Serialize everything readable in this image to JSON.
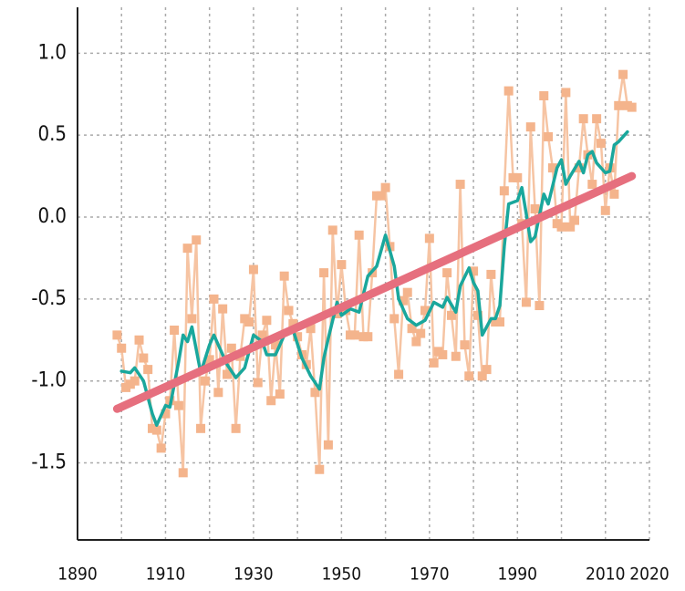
{
  "chart_data": {
    "type": "line",
    "xlim": [
      1890,
      2020
    ],
    "xticks": [
      1890,
      1910,
      1930,
      1950,
      1970,
      1990,
      2010,
      2020
    ],
    "ylim": [
      -1.97,
      1.28
    ],
    "yticks": [
      -1.5,
      {
        "value": -1,
        "label": "-1.0"
      },
      -0.5,
      {
        "value": 0,
        "label": "0.0"
      },
      0.5,
      {
        "value": 1,
        "label": "1.0"
      }
    ],
    "grid": true,
    "series": [
      {
        "color": "#f6c4a3",
        "marker": "square",
        "marker_color": "#f4b48c",
        "width": 2.5,
        "x": [
          1899,
          1900,
          1901,
          1902,
          1903,
          1904,
          1905,
          1906,
          1907,
          1908,
          1909,
          1910,
          1911,
          1912,
          1913,
          1914,
          1915,
          1916,
          1917,
          1918,
          1919,
          1920,
          1921,
          1922,
          1923,
          1924,
          1925,
          1926,
          1927,
          1928,
          1929,
          1930,
          1931,
          1932,
          1933,
          1934,
          1935,
          1936,
          1937,
          1938,
          1939,
          1940,
          1941,
          1942,
          1943,
          1944,
          1945,
          1946,
          1947,
          1948,
          1949,
          1950,
          1951,
          1952,
          1953,
          1954,
          1955,
          1956,
          1957,
          1958,
          1959,
          1960,
          1961,
          1962,
          1963,
          1964,
          1965,
          1966,
          1967,
          1968,
          1969,
          1970,
          1971,
          1972,
          1973,
          1974,
          1975,
          1976,
          1977,
          1978,
          1979,
          1980,
          1981,
          1982,
          1983,
          1984,
          1985,
          1986,
          1987,
          1988,
          1989,
          1990,
          1991,
          1992,
          1993,
          1994,
          1995,
          1996,
          1997,
          1998,
          1999,
          2000,
          2001,
          2002,
          2003,
          2004,
          2005,
          2006,
          2007,
          2008,
          2009,
          2010,
          2011,
          2012,
          2013,
          2014,
          2015,
          2016
        ],
        "values": [
          -0.72,
          -0.8,
          -1.04,
          -1.02,
          -1.0,
          -0.75,
          -0.86,
          -0.93,
          -1.29,
          -1.3,
          -1.41,
          -1.2,
          -1.12,
          -0.69,
          -1.15,
          -1.56,
          -0.19,
          -0.62,
          -0.14,
          -1.29,
          -1.0,
          -0.87,
          -0.5,
          -1.07,
          -0.56,
          -0.96,
          -0.8,
          -1.29,
          -0.85,
          -0.62,
          -0.64,
          -0.32,
          -1.01,
          -0.72,
          -0.63,
          -1.12,
          -0.78,
          -1.08,
          -0.36,
          -0.57,
          -0.65,
          -0.73,
          -0.84,
          -0.9,
          -0.68,
          -1.07,
          -1.54,
          -0.34,
          -1.39,
          -0.08,
          -0.59,
          -0.29,
          -0.57,
          -0.72,
          -0.72,
          -0.11,
          -0.73,
          -0.73,
          -0.34,
          0.13,
          0.13,
          0.18,
          -0.18,
          -0.62,
          -0.96,
          -0.51,
          -0.46,
          -0.68,
          -0.76,
          -0.71,
          -0.57,
          -0.13,
          -0.89,
          -0.82,
          -0.84,
          -0.34,
          -0.6,
          -0.85,
          0.2,
          -0.78,
          -0.97,
          -0.33,
          -0.6,
          -0.97,
          -0.93,
          -0.35,
          -0.64,
          -0.64,
          0.16,
          0.77,
          0.24,
          0.24,
          -0.04,
          -0.52,
          0.55,
          0.05,
          -0.54,
          0.74,
          0.49,
          0.3,
          -0.04,
          -0.06,
          0.76,
          -0.06,
          -0.02,
          0.3,
          0.6,
          0.38,
          0.2,
          0.6,
          0.45,
          0.04,
          0.3,
          0.14,
          0.68,
          0.87,
          0.68,
          0.67
        ]
      },
      {
        "color": "#1aa79c",
        "width": 3.5,
        "x": [
          1900,
          1902,
          1903,
          1905,
          1907,
          1908,
          1910,
          1911,
          1913,
          1914,
          1915,
          1916,
          1918,
          1920,
          1921,
          1922,
          1924,
          1926,
          1928,
          1930,
          1932,
          1933,
          1935,
          1937,
          1939,
          1941,
          1943,
          1945,
          1946,
          1947,
          1949,
          1950,
          1952,
          1954,
          1956,
          1958,
          1960,
          1962,
          1963,
          1965,
          1967,
          1969,
          1971,
          1973,
          1974,
          1976,
          1977,
          1979,
          1980,
          1981,
          1982,
          1984,
          1985,
          1986,
          1987,
          1988,
          1990,
          1991,
          1992,
          1993,
          1994,
          1996,
          1997,
          1999,
          2000,
          2001,
          2002,
          2004,
          2005,
          2006,
          2007,
          2008,
          2010,
          2011,
          2012,
          2013,
          2015
        ],
        "values": [
          -0.94,
          -0.95,
          -0.92,
          -1.0,
          -1.2,
          -1.27,
          -1.15,
          -1.16,
          -0.88,
          -0.72,
          -0.76,
          -0.67,
          -0.95,
          -0.78,
          -0.72,
          -0.78,
          -0.9,
          -0.98,
          -0.92,
          -0.72,
          -0.76,
          -0.84,
          -0.84,
          -0.72,
          -0.69,
          -0.86,
          -0.97,
          -1.05,
          -0.86,
          -0.74,
          -0.52,
          -0.6,
          -0.56,
          -0.58,
          -0.36,
          -0.3,
          -0.11,
          -0.3,
          -0.5,
          -0.62,
          -0.66,
          -0.63,
          -0.52,
          -0.55,
          -0.49,
          -0.58,
          -0.42,
          -0.31,
          -0.4,
          -0.45,
          -0.72,
          -0.62,
          -0.62,
          -0.54,
          -0.18,
          0.08,
          0.1,
          0.18,
          0.02,
          -0.15,
          -0.12,
          0.14,
          0.08,
          0.3,
          0.35,
          0.2,
          0.25,
          0.34,
          0.27,
          0.38,
          0.4,
          0.33,
          0.27,
          0.28,
          0.44,
          0.46,
          0.52
        ]
      },
      {
        "color": "#e66f7e",
        "width": 9,
        "x": [
          1899,
          2016
        ],
        "values": [
          -1.17,
          0.25
        ]
      }
    ]
  }
}
